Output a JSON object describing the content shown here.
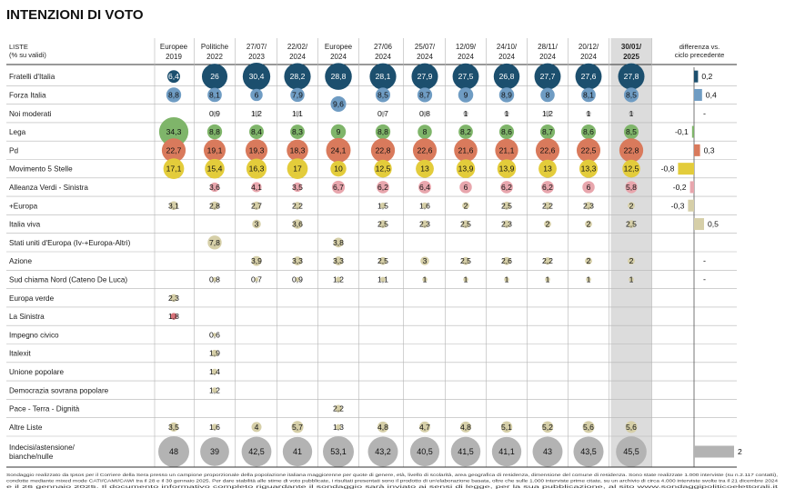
{
  "chart_data": {
    "type": "table",
    "title": "INTENZIONI DI VOTO",
    "rows_header": [
      "LISTE",
      "(% su validi)"
    ],
    "columns": [
      {
        "l1": "Europee",
        "l2": "2019"
      },
      {
        "l1": "Politiche",
        "l2": "2022"
      },
      {
        "l1": "27/07/",
        "l2": "2023"
      },
      {
        "l1": "22/02/",
        "l2": "2024"
      },
      {
        "l1": "Europee",
        "l2": "2024"
      },
      {
        "l1": "27/06",
        "l2": "2024"
      },
      {
        "l1": "25/07/",
        "l2": "2024"
      },
      {
        "l1": "12/09/",
        "l2": "2024"
      },
      {
        "l1": "24/10/",
        "l2": "2024"
      },
      {
        "l1": "28/11/",
        "l2": "2024"
      },
      {
        "l1": "20/12/",
        "l2": "2024"
      },
      {
        "l1": "30/01/",
        "l2": "2025"
      }
    ],
    "diff_header": [
      "differenza vs.",
      "ciclo precedente"
    ],
    "rows": [
      {
        "name": "Fratelli d'Italia",
        "color": "#1c4f6e",
        "values": [
          "6,4",
          "26",
          "30,4",
          "28,2",
          "28,8",
          "28,1",
          "27,9",
          "27,5",
          "26,8",
          "27,7",
          "27,6",
          "27,8"
        ],
        "diff": "0,2"
      },
      {
        "name": "Forza Italia",
        "color": "#6f9cc3",
        "values": [
          "8,8",
          "8,1",
          "6",
          "7,9",
          "9,6",
          "8,5",
          "8,7",
          "9",
          "8,9",
          "8",
          "8,1",
          "8,5"
        ],
        "diff": "0,4"
      },
      {
        "name": "Noi moderati",
        "color": "#bfbfbf",
        "values": [
          "",
          "0,9",
          "1,2",
          "1,1",
          "",
          "0,7",
          "0,8",
          "1",
          "1",
          "1,2",
          "1",
          "1"
        ],
        "diff": "-"
      },
      {
        "name": "Lega",
        "color": "#7fb56a",
        "values": [
          "34,3",
          "8,8",
          "8,4",
          "8,3",
          "9",
          "8,8",
          "8",
          "8,2",
          "8,6",
          "8,7",
          "8,6",
          "8,5"
        ],
        "diff": "-0,1"
      },
      {
        "name": "Pd",
        "color": "#d97a5c",
        "values": [
          "22,7",
          "19,1",
          "19,3",
          "18,3",
          "24,1",
          "22,8",
          "22,6",
          "21,6",
          "21,1",
          "22,6",
          "22,5",
          "22,8"
        ],
        "diff": "0,3"
      },
      {
        "name": "Movimento 5 Stelle",
        "color": "#e3cc3b",
        "values": [
          "17,1",
          "15,4",
          "16,3",
          "17",
          "10",
          "12,5",
          "13",
          "13,9",
          "13,9",
          "13",
          "13,3",
          "12,5"
        ],
        "diff": "-0,8"
      },
      {
        "name": "Alleanza Verdi - Sinistra",
        "color": "#e8a6ad",
        "values": [
          "",
          "3,6",
          "4,1",
          "3,5",
          "6,7",
          "6,2",
          "6,4",
          "6",
          "6,2",
          "6,2",
          "6",
          "5,8"
        ],
        "diff": "-0,2"
      },
      {
        "name": "+Europa",
        "color": "#d6cfa8",
        "values": [
          "3,1",
          "2,8",
          "2,7",
          "2,2",
          "",
          "1,5",
          "1,6",
          "2",
          "2,5",
          "2,2",
          "2,3",
          "2"
        ],
        "diff": "-0,3"
      },
      {
        "name": "Italia viva",
        "color": "#d6cfa8",
        "values": [
          "",
          "",
          "3",
          "3,6",
          "",
          "2,5",
          "2,3",
          "2,5",
          "2,3",
          "2",
          "2",
          "2,5"
        ],
        "diff": "0,5"
      },
      {
        "name": "Stati uniti d'Europa (Iv-+Europa-Altri)",
        "color": "#d6cfa8",
        "values": [
          "",
          "7,8",
          "",
          "",
          "3,8",
          "",
          "",
          "",
          "",
          "",
          "",
          ""
        ],
        "diff": ""
      },
      {
        "name": "Azione",
        "color": "#d6cfa8",
        "values": [
          "",
          "",
          "3,9",
          "3,3",
          "3,3",
          "2,5",
          "3",
          "2,5",
          "2,6",
          "2,2",
          "2",
          "2"
        ],
        "diff": "-"
      },
      {
        "name": "Sud chiama Nord (Cateno De Luca)",
        "color": "#d6cfa8",
        "values": [
          "",
          "0,8",
          "0,7",
          "0,9",
          "1,2",
          "1,1",
          "1",
          "1",
          "1",
          "1",
          "1",
          "1"
        ],
        "diff": "-"
      },
      {
        "name": "Europa verde",
        "color": "#d6cfa8",
        "values": [
          "2,3",
          "",
          "",
          "",
          "",
          "",
          "",
          "",
          "",
          "",
          "",
          ""
        ],
        "diff": ""
      },
      {
        "name": "La Sinistra",
        "color": "#d9737a",
        "values": [
          "1,8",
          "",
          "",
          "",
          "",
          "",
          "",
          "",
          "",
          "",
          "",
          ""
        ],
        "diff": ""
      },
      {
        "name": "Impegno civico",
        "color": "#d6cfa8",
        "values": [
          "",
          "0,6",
          "",
          "",
          "",
          "",
          "",
          "",
          "",
          "",
          "",
          ""
        ],
        "diff": ""
      },
      {
        "name": "Italexit",
        "color": "#d6cfa8",
        "values": [
          "",
          "1,9",
          "",
          "",
          "",
          "",
          "",
          "",
          "",
          "",
          "",
          ""
        ],
        "diff": ""
      },
      {
        "name": "Unione popolare",
        "color": "#d6cfa8",
        "values": [
          "",
          "1,4",
          "",
          "",
          "",
          "",
          "",
          "",
          "",
          "",
          "",
          ""
        ],
        "diff": ""
      },
      {
        "name": "Democrazia sovrana popolare",
        "color": "#d6cfa8",
        "values": [
          "",
          "1,2",
          "",
          "",
          "",
          "",
          "",
          "",
          "",
          "",
          "",
          ""
        ],
        "diff": ""
      },
      {
        "name": "Pace - Terra - Dignità",
        "color": "#d6cfa8",
        "values": [
          "",
          "",
          "",
          "",
          "2,2",
          "",
          "",
          "",
          "",
          "",
          "",
          ""
        ],
        "diff": ""
      },
      {
        "name": "Altre Liste",
        "color": "#d6cfa8",
        "values": [
          "3,5",
          "1,6",
          "4",
          "5,7",
          "1,3",
          "4,8",
          "4,7",
          "4,8",
          "5,1",
          "5,2",
          "5,6",
          "5,6"
        ],
        "diff": ""
      },
      {
        "name": "Indecisi/astensione/ bianche/nulle",
        "color": "#b3b3b3",
        "values": [
          "48",
          "39",
          "42,5",
          "41",
          "53,1",
          "43,2",
          "40,5",
          "41,5",
          "41,1",
          "43",
          "43,5",
          "45,5"
        ],
        "diff": "2"
      }
    ]
  },
  "footnote": [
    "Sondaggio realizzato da Ipsos per il Corriere della Sera presso un campione proporzionale della popolazione italiana maggiorenne per quote di genere, età, livello di scolarità, area geografica di residenza, dimensione del comune di residenza. Sono state realizzate 1.000 interviste (su n.2.117 contatti),",
    "condotte mediante mixed mode CATI/CAMI/CAWI tra il 28 e il 30 gennaio 2025. Per dare stabilità alle stime di voto pubblicate, i risultati presentati sono il prodotto di un'elaborazione basata, oltre che sulle 1.000 interviste prime citate, su un archivio di circa 4.000 interviste svolte tra il 21 dicembre 2024",
    "e il 26 gennaio 2025. Il documento informativo completo riguardante il sondaggio sarà inviato ai sensi di legge, per la sua pubblicazione, al sito www.sondaggipoliticoelettorali.it"
  ]
}
